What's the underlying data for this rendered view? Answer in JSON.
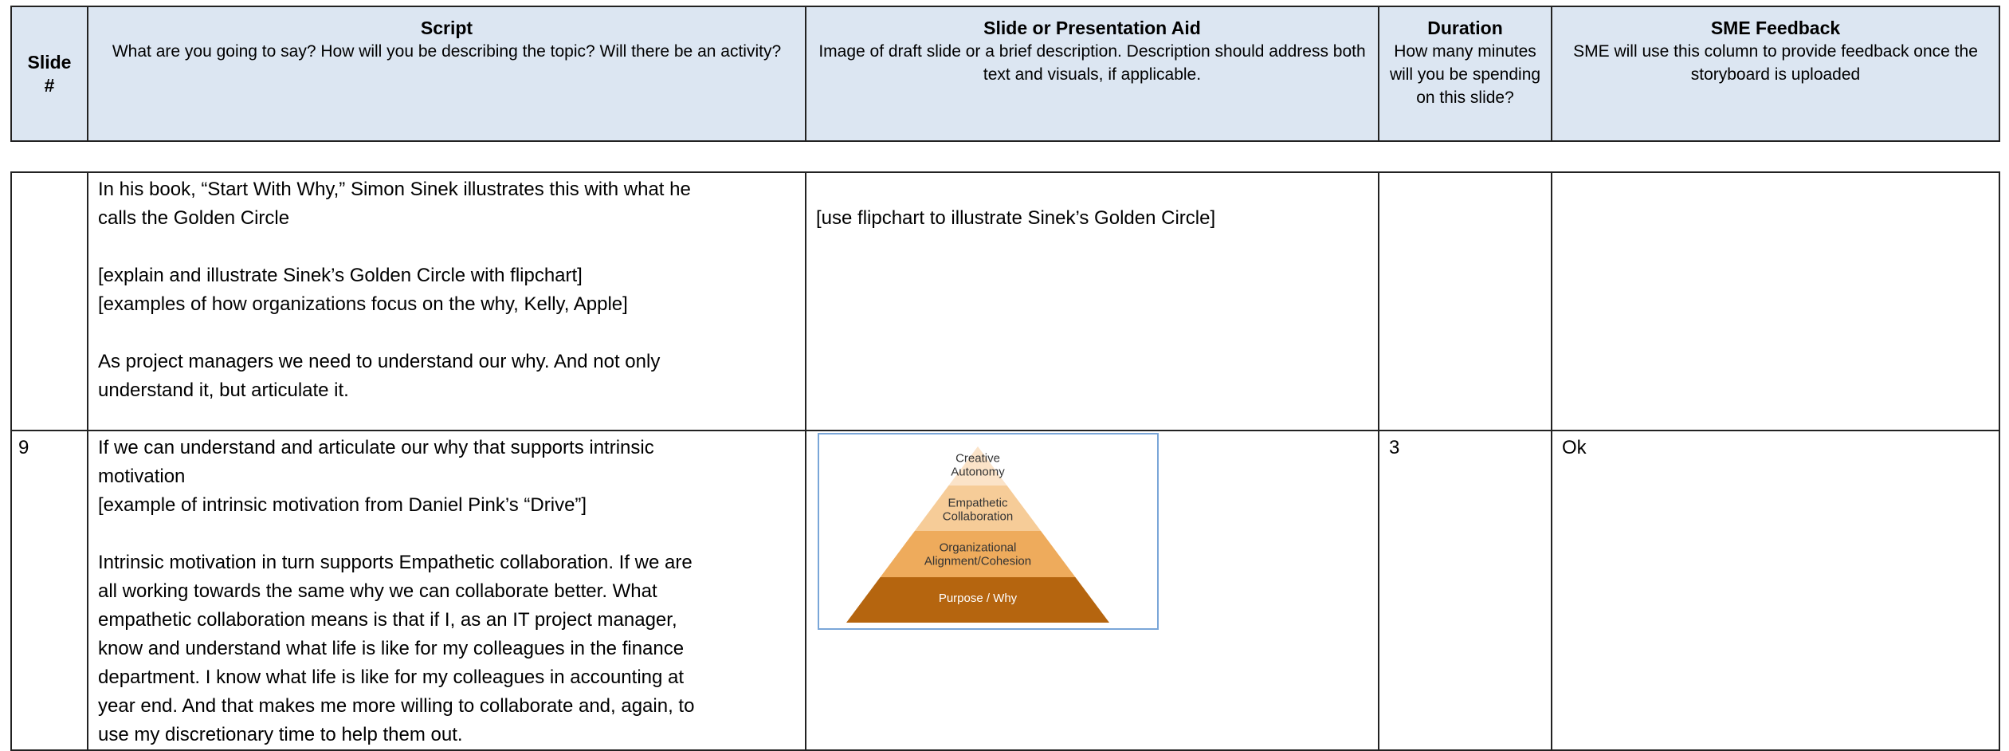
{
  "header": {
    "columns": [
      {
        "title": "Slide #"
      },
      {
        "title": "Script",
        "description": "What are you going to say? How will you be describing the topic? Will there be an activity?"
      },
      {
        "title": "Slide or Presentation Aid",
        "description": "Image of draft slide or a brief description. Description should address both text and visuals, if applicable."
      },
      {
        "title": "Duration",
        "description": "How many minutes will you be spending on this slide?"
      },
      {
        "title": "SME Feedback",
        "description": "SME will use this column to provide feedback once the storyboard is uploaded"
      }
    ]
  },
  "table": {
    "rows": [
      {
        "script": [
          [
            "In his book, “Start With Why,” Simon Sinek illustrates this with what he",
            "calls the Golden Circle"
          ],
          [
            "[explain and illustrate Sinek’s Golden Circle with flipchart]",
            "[examples of how organizations focus on the why, Kelly, Apple]"
          ],
          [
            "As project managers we need to understand our why.  And not only",
            "understand it, but articulate it."
          ]
        ],
        "aid": "[use flipchart to illustrate Sinek’s Golden Circle]"
      },
      {
        "slide": "9",
        "script": [
          [
            "If we can understand and articulate our why that supports intrinsic",
            "motivation",
            "[example of intrinsic motivation from Daniel Pink’s “Drive”]"
          ],
          [
            "Intrinsic motivation in turn supports Empathetic collaboration.  If we are",
            "all working towards the same why we can collaborate better.   What",
            "empathetic collaboration means is that if I, as an IT project manager,",
            "know and understand what life is like for my colleagues in the finance",
            "department. I know what life is like for my colleagues in accounting at",
            "year end.  And that makes me more willing to collaborate and, again, to",
            "use my discretionary time to help them out."
          ]
        ],
        "aid_image": {
          "levels": [
            [
              "Creative",
              "Autonomy"
            ],
            [
              "Empathetic",
              "Collaboration"
            ],
            [
              "Organizational",
              "Alignment/Cohesion"
            ],
            [
              "Purpose / Why"
            ]
          ]
        },
        "duration": "3",
        "feedback": "Ok"
      }
    ]
  }
}
